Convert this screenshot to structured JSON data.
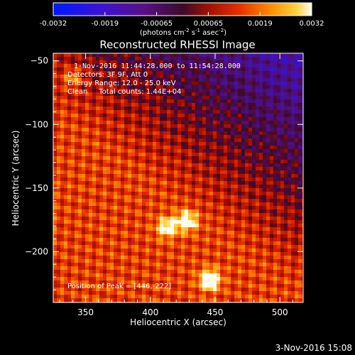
{
  "colorbar": {
    "ticks": [
      "-0.0032",
      "-0.0019",
      "-0.00065",
      "0.00065",
      "0.0019",
      "0.0032"
    ],
    "unit_label": "(photons cm",
    "unit_sup1": "-2",
    "unit_mid": " s",
    "unit_sup2": "-1",
    "unit_end": " asec",
    "unit_sup3": "-2",
    "unit_close": ")"
  },
  "chart_data": {
    "type": "heatmap",
    "title": "Reconstructed RHESSI Image",
    "xlabel": "Heliocentric X (arcsec)",
    "ylabel": "Heliocentric Y (arcsec)",
    "xlim": [
      325,
      518
    ],
    "ylim": [
      -240,
      -44
    ],
    "x_ticks": [
      350,
      400,
      450,
      500
    ],
    "y_ticks": [
      -50,
      -100,
      -150,
      -200
    ],
    "x_tick_labels": [
      "350",
      "400",
      "450",
      "500"
    ],
    "y_tick_labels": [
      "−50",
      "−100",
      "−150",
      "−200"
    ],
    "value_range": [
      -0.0032,
      0.0032
    ],
    "sources": [
      {
        "x": 446,
        "y": -222,
        "intensity": 1.0
      },
      {
        "x": 428,
        "y": -176,
        "intensity": 0.85
      },
      {
        "x": 413,
        "y": -181,
        "intensity": 0.75
      },
      {
        "x": 340,
        "y": -63,
        "intensity": 0.45
      }
    ]
  },
  "annotations": {
    "time": "1-Nov-2016 11:44:28.000 to 11:54:28.000",
    "detectors": "Detectors: 3F 9F, Att 0",
    "energy": "Energy Range: 12.0 - 25.0 keV",
    "clean": "Clean     Total counts: 1.44E+04",
    "peak": "Position of Peak = [446,-222]"
  },
  "footer": {
    "timestamp": "3-Nov-2016 15:08"
  }
}
